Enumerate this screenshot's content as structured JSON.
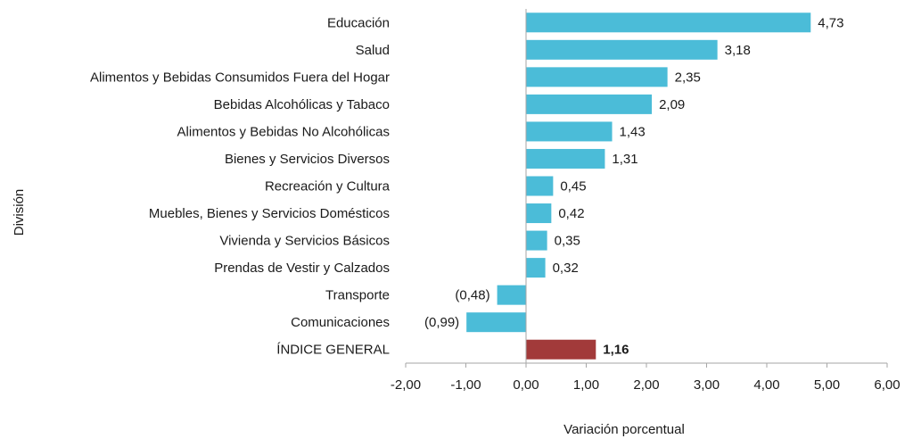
{
  "chart_data": {
    "type": "bar",
    "orientation": "horizontal",
    "categories": [
      "Educación",
      "Salud",
      "Alimentos y Bebidas Consumidos Fuera del Hogar",
      "Bebidas Alcohólicas y Tabaco",
      "Alimentos y Bebidas No Alcohólicas",
      "Bienes y Servicios Diversos",
      "Recreación y Cultura",
      "Muebles, Bienes y Servicios Domésticos",
      "Vivienda y Servicios Básicos",
      "Prendas de Vestir y Calzados",
      "Transporte",
      "Comunicaciones",
      "ÍNDICE GENERAL"
    ],
    "values": [
      4.73,
      3.18,
      2.35,
      2.09,
      1.43,
      1.31,
      0.45,
      0.42,
      0.35,
      0.32,
      -0.48,
      -0.99,
      1.16
    ],
    "value_labels": [
      "4,73",
      "3,18",
      "2,35",
      "2,09",
      "1,43",
      "1,31",
      "0,45",
      "0,42",
      "0,35",
      "0,32",
      "(0,48)",
      "(0,99)",
      "1,16"
    ],
    "highlight_index": 12,
    "colors": {
      "default": "#4bbcd8",
      "highlight": "#a23a3a"
    },
    "xlim": [
      -2,
      6
    ],
    "xticks": [
      -2,
      -1,
      0,
      1,
      2,
      3,
      4,
      5,
      6
    ],
    "xtick_labels": [
      "-2,00",
      "-1,00",
      "0,00",
      "1,00",
      "2,00",
      "3,00",
      "4,00",
      "5,00",
      "6,00"
    ],
    "xlabel": "Variación porcentual",
    "ylabel": "División",
    "grid": false,
    "legend": "none"
  }
}
